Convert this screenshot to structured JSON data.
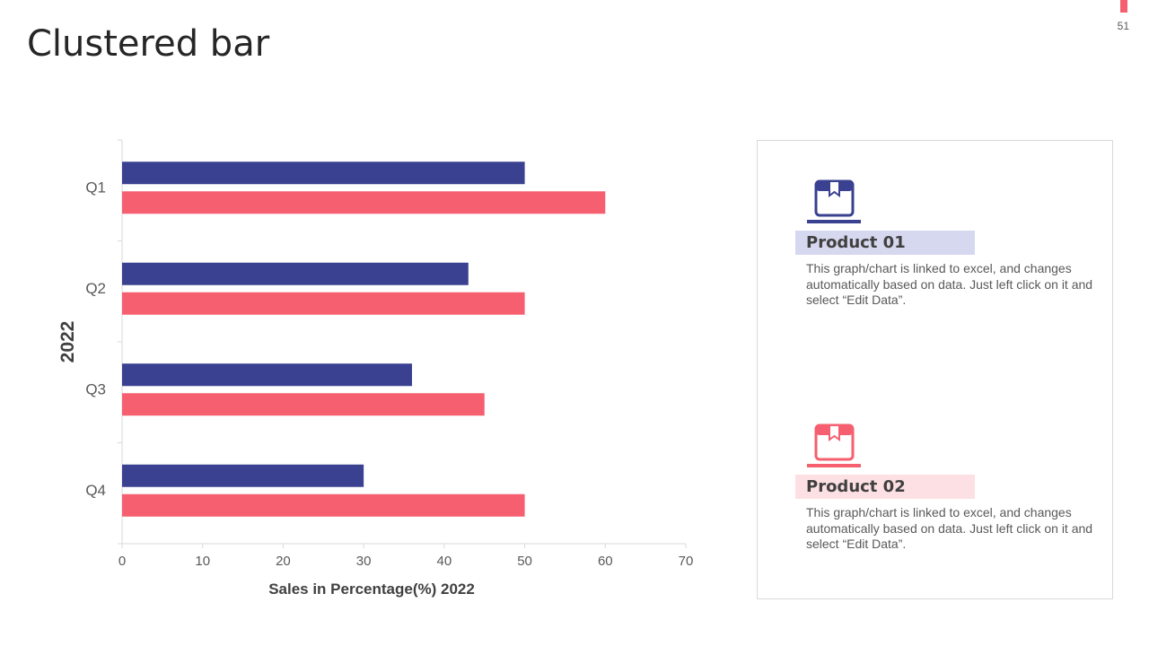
{
  "slide": {
    "title": "Clustered bar",
    "page_number": "51"
  },
  "colors": {
    "series1": "#3a4190",
    "series2": "#f65f6f",
    "product1_bg": "#d6d8ef",
    "product2_bg": "#fde0e3",
    "axis": "#d9d9d9"
  },
  "chart_data": {
    "type": "bar",
    "orientation": "horizontal",
    "title": "",
    "categories": [
      "Q1",
      "Q2",
      "Q3",
      "Q4"
    ],
    "series": [
      {
        "name": "Product 01",
        "values": [
          50,
          43,
          36,
          30
        ]
      },
      {
        "name": "Product 02",
        "values": [
          60,
          50,
          45,
          50
        ]
      }
    ],
    "xlabel": "Sales in Percentage(%) 2022",
    "ylabel": "2022",
    "xlim": [
      0,
      70
    ],
    "xticks": [
      0,
      10,
      20,
      30,
      40,
      50,
      60,
      70
    ],
    "grid": false,
    "legend": "right"
  },
  "products": [
    {
      "name": "Product 01",
      "icon": "box-icon",
      "description": "This graph/chart is linked to excel, and changes automatically based on data. Just left click on it and select “Edit Data”."
    },
    {
      "name": "Product 02",
      "icon": "box-icon",
      "description": "This graph/chart is linked to excel, and changes automatically based on data. Just left click on it and select “Edit Data”."
    }
  ]
}
